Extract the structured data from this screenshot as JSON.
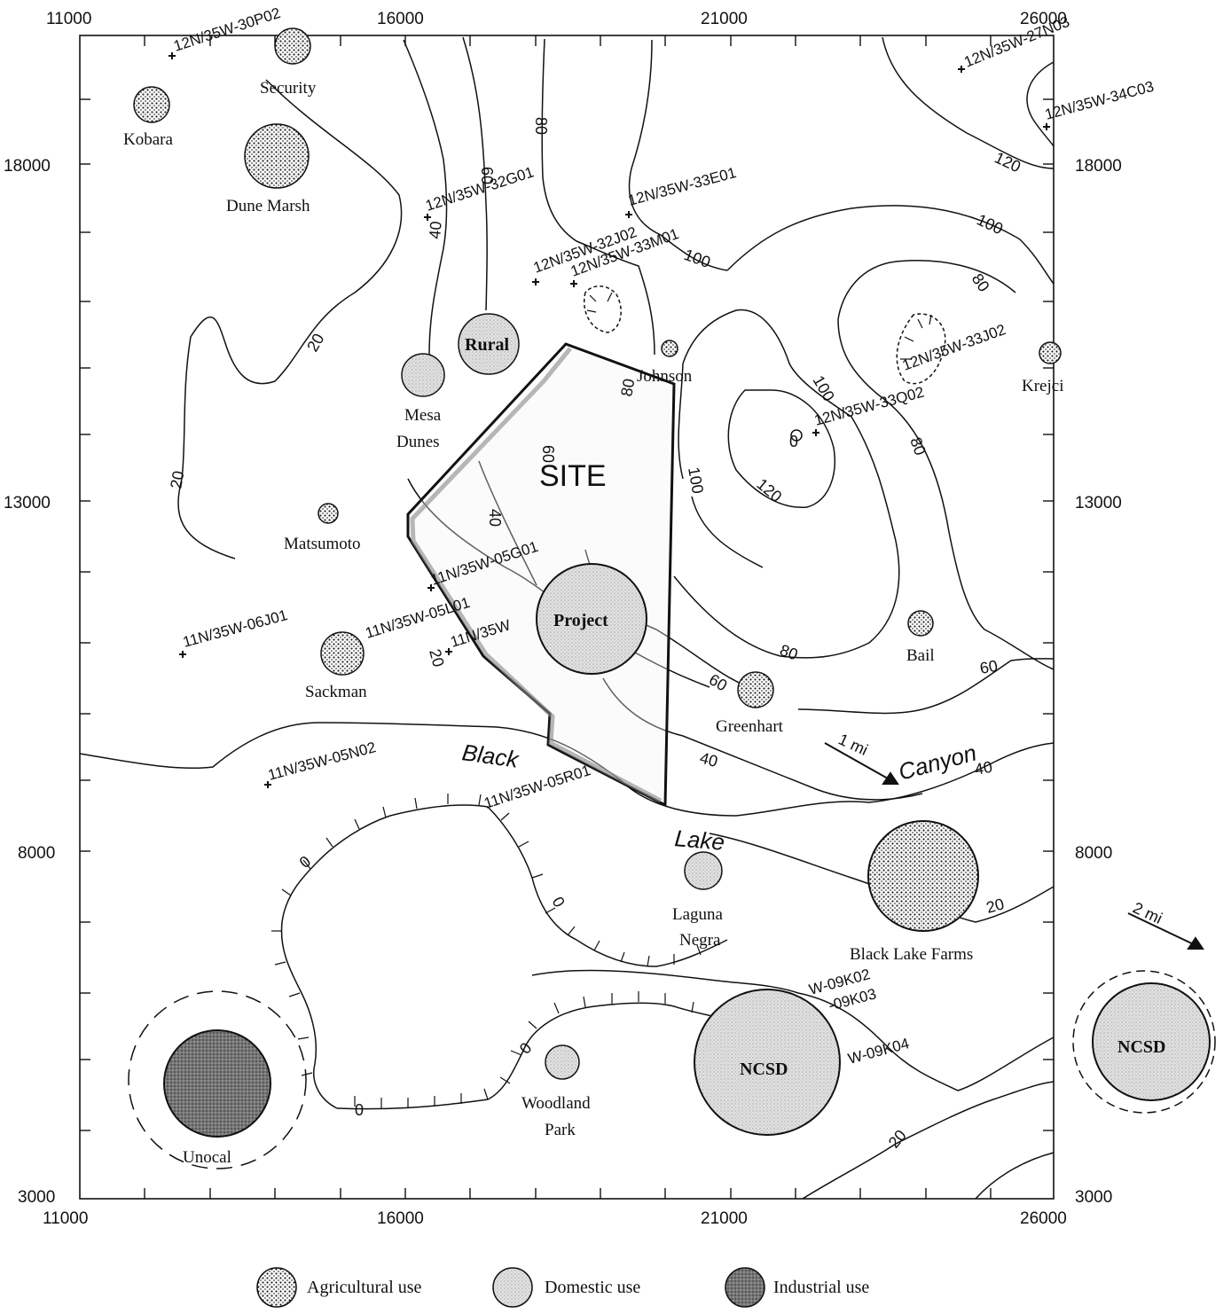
{
  "axes": {
    "x_ticks": [
      "11000",
      "16000",
      "21000",
      "26000"
    ],
    "y_ticks": [
      "18000",
      "13000",
      "8000",
      "3000"
    ],
    "top_left_corner": "11000",
    "top_right_corner": "26000",
    "bottom_left_corner": "3000",
    "bottom_right_corner": "26000",
    "left_bottom_y": "3000",
    "right_bottom_y": "3000"
  },
  "site_label": "SITE",
  "contour_labels": {
    "c20a": "20",
    "c20b": "20",
    "c40a": "40",
    "c60a": "60",
    "c80a": "80",
    "c80b": "80",
    "c100a": "100",
    "c100b": "100",
    "c100c": "100",
    "c120a": "120",
    "c120b": "120",
    "c80c": "80",
    "c80d": "80",
    "c40b": "40",
    "c60b": "60",
    "c60c": "60",
    "c40c": "40",
    "c40d": "40",
    "c20c": "20",
    "c20d": "20",
    "c0a": "0",
    "c0b": "0",
    "c0c": "0",
    "c0d": "0",
    "c60d": "60",
    "c80e": "80",
    "c60e": "60",
    "c40e": "40",
    "c80f": "80"
  },
  "wells": [
    "12N/35W-30P02",
    "12N/35W-27N03",
    "12N/35W-34C03",
    "12N/35W-32G01",
    "12N/35W-33E01",
    "12N/35W-32J02",
    "12N/35W-33M01",
    "12N/35W-33J02",
    "12N/35W-33Q02",
    "12N/35W",
    "11N/35W-05G01",
    "11N/35W-06J01",
    "11N/35W-05L01",
    "11N/35W",
    "11N/35W-05N02",
    "11N/35W-05R01",
    "W-09K02",
    "-09K03",
    "W-09K04"
  ],
  "users": {
    "agricultural": [
      "Security",
      "Kobara",
      "Dune Marsh",
      "Matsumoto",
      "Sackman",
      "Johnson",
      "Krejci",
      "Bail",
      "Greenhart",
      "Black Lake Farms"
    ],
    "domestic": [
      "Rural",
      "Mesa Dunes",
      "Project",
      "Laguna Negra",
      "Woodland Park",
      "NCSD",
      "NCSD"
    ],
    "industrial": [
      "Unocal"
    ]
  },
  "places": {
    "black": "Black",
    "canyon": "Canyon",
    "lake": "Lake",
    "one_mile": "1 mi",
    "two_mile": "2 mi"
  },
  "legend": {
    "agricultural": "Agricultural use",
    "domestic": "Domestic use",
    "industrial": "Industrial use"
  }
}
